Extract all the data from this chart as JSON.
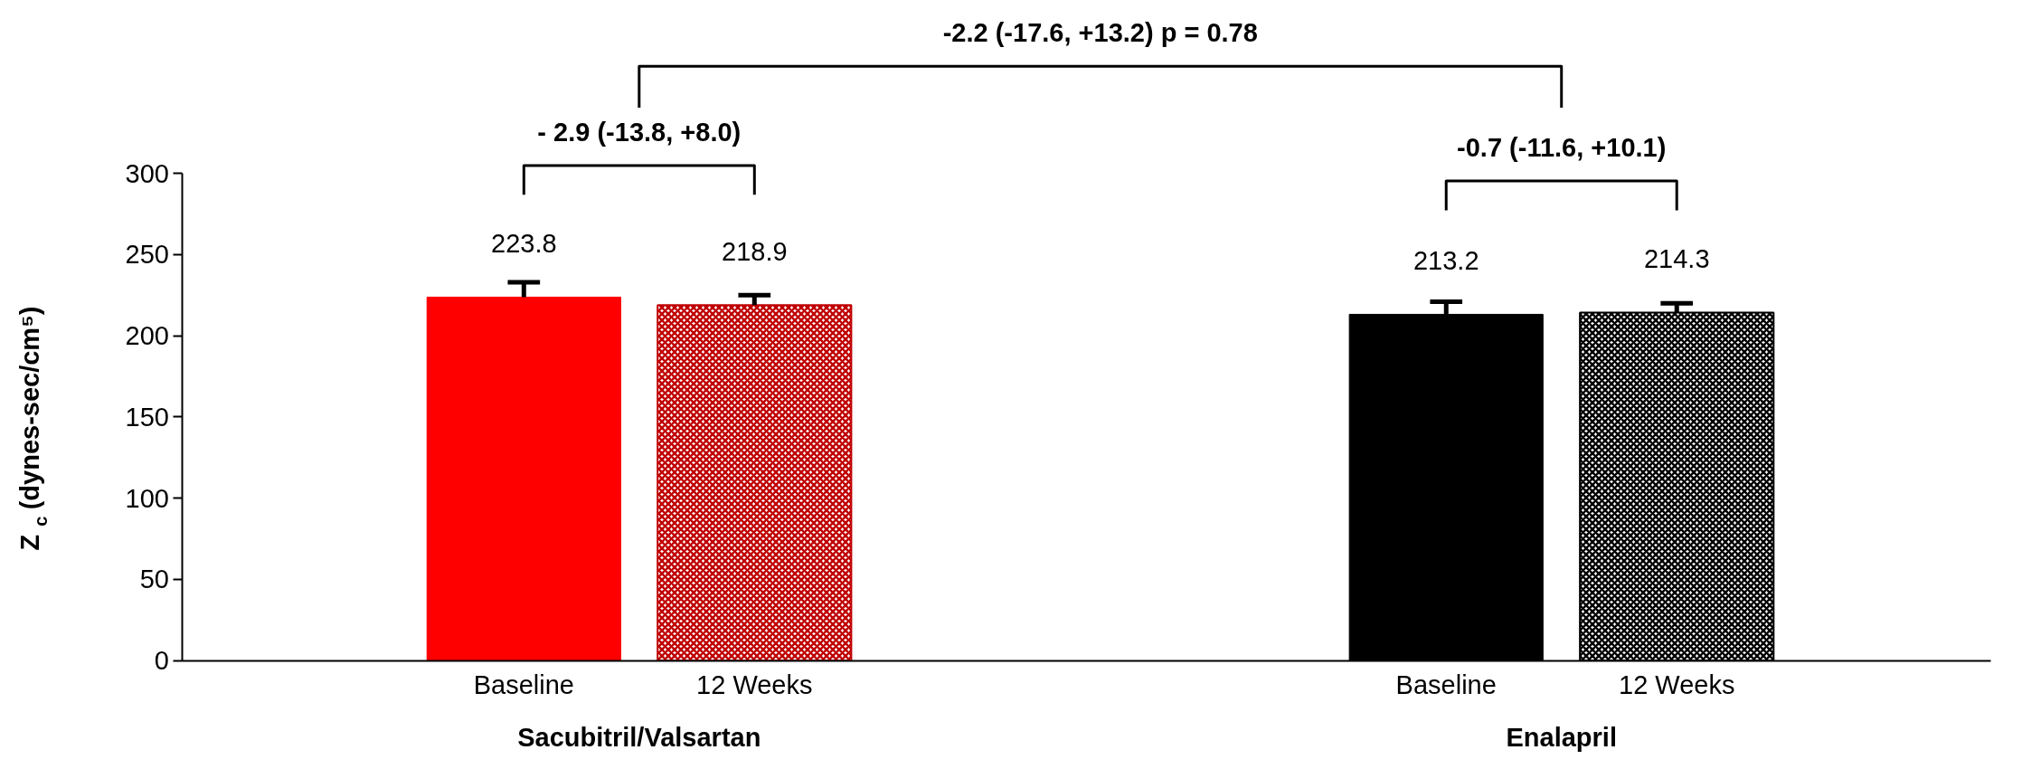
{
  "chart_data": {
    "type": "bar",
    "ylabel": "Z$_{c}$ (dynes-sec/cm⁵)",
    "categories": [
      "Baseline",
      "12 Weeks",
      null,
      null,
      "Baseline",
      "12 Weeks"
    ],
    "values": [
      223.8,
      218.9,
      null,
      null,
      213.2,
      214.3
    ],
    "colors": [
      "#ff0000",
      "#c00000",
      null,
      null,
      "#000000",
      "#000000"
    ],
    "errors": [
      [
        223.8,
        233
      ],
      [
        218.9,
        225
      ],
      null,
      null,
      [
        213.2,
        221
      ],
      [
        214.3,
        220
      ]
    ],
    "ylim": [
      0,
      300
    ],
    "yticks": [
      0,
      50,
      100,
      150,
      200,
      250,
      300
    ],
    "data_labels": true,
    "grid": false,
    "annotations": [
      "-2.2 (-17.6, +13.2) p = 0.78",
      "- 2.9 (-13.8, +8.0)",
      "-0.7 (-11.6, +10.1)",
      "Sacubitril/Valsartan",
      "Enalapril"
    ]
  }
}
